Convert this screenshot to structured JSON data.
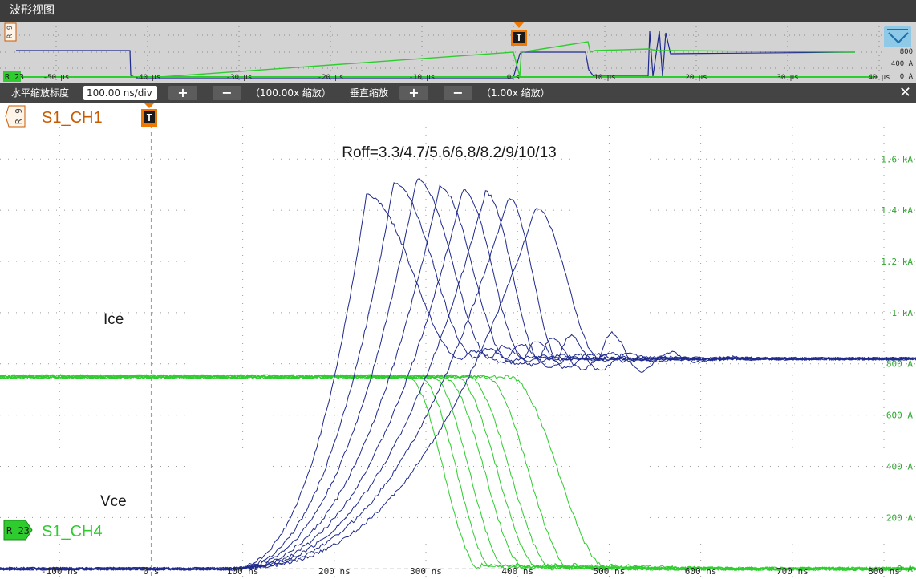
{
  "window": {
    "title": "波形视图"
  },
  "toolbar": {
    "h_zoom_label": "水平缩放标度",
    "h_zoom_value": "100.00 ns/div",
    "plus": "+",
    "minus": "−",
    "h_zoom_factor": "（100.00x 缩放）",
    "v_zoom_label": "垂直缩放",
    "v_zoom_factor": "（1.00x 缩放）",
    "close": "✕"
  },
  "markers": {
    "trigger": "T",
    "ch1_ref": "R 9",
    "ch4_ref": "R 23",
    "ch1_label": "S1_CH1",
    "ch4_label": "S1_CH4"
  },
  "colors": {
    "ch1": "#1f2a8c",
    "ch4": "#2fcc2f",
    "trigger": "#f07800",
    "ch1_label": "#c85a00"
  },
  "overview": {
    "x_ticks": [
      "-50 μs",
      "-40 μs",
      "-30 μs",
      "-20 μs",
      "-10 μs",
      "0 s",
      "10 μs",
      "20 μs",
      "30 μs",
      "40 μs"
    ],
    "y_ticks": [
      "1.",
      "800",
      "400 A",
      "0 A"
    ]
  },
  "chart_data": {
    "type": "line",
    "title": "Roff=3.3/4.7/5.6/6.8/8.2/9/10/13",
    "annotations": [
      "Ice",
      "Vce"
    ],
    "x_tick_labels": [
      "-100 ns",
      "0 s",
      "100 ns",
      "200 ns",
      "300 ns",
      "400 ns",
      "500 ns",
      "600 ns",
      "700 ns",
      "800 ns"
    ],
    "x_ticks": [
      -100,
      0,
      100,
      200,
      300,
      400,
      500,
      600,
      700,
      800
    ],
    "xlim": [
      -165,
      835
    ],
    "ylim": [
      -40,
      1820
    ],
    "y_tick_labels": [
      "0 A",
      "200 A",
      "400 A",
      "600 A",
      "800 A",
      "1 kA",
      "1.2 kA",
      "1.4 kA",
      "1.6 kA"
    ],
    "y_ticks": [
      0,
      200,
      400,
      600,
      800,
      1000,
      1200,
      1400,
      1600
    ],
    "grid": true,
    "gate_resistances": [
      3.3,
      4.7,
      5.6,
      6.8,
      8.2,
      9,
      10,
      13
    ],
    "series": [
      {
        "channel": "S1_CH1",
        "peaks_A": [
          1460,
          1510,
          1520,
          1490,
          1480,
          1470,
          1450,
          1410
        ],
        "peak_time_ns": [
          235,
          265,
          290,
          315,
          340,
          365,
          390,
          420
        ],
        "ring_end_ns": [
          340,
          355,
          372,
          390,
          408,
          425,
          445,
          490
        ]
      },
      {
        "channel": "S1_CH4",
        "flat_A": 750,
        "fall_start_ns": [
          280,
          293,
          306,
          319,
          332,
          345,
          365,
          390
        ],
        "fall_end_ns": [
          360,
          375,
          390,
          410,
          425,
          440,
          460,
          500
        ]
      }
    ]
  }
}
